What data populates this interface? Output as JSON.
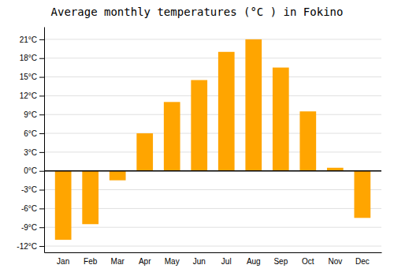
{
  "chart_data": {
    "type": "bar",
    "title": "Average monthly temperatures (°C ) in Fokino",
    "categories": [
      "Jan",
      "Feb",
      "Mar",
      "Apr",
      "May",
      "Jun",
      "Jul",
      "Aug",
      "Sep",
      "Oct",
      "Nov",
      "Dec"
    ],
    "values": [
      -11,
      -8.5,
      -1.5,
      6,
      11,
      14.5,
      19,
      21,
      16.5,
      9.5,
      0.5,
      -7.5
    ],
    "color": "#FFA500",
    "ylim": [
      -13,
      23
    ],
    "yticks": [
      {
        "value": -12,
        "label": "-12°C"
      },
      {
        "value": -9,
        "label": "-9°C"
      },
      {
        "value": -6,
        "label": "-6°C"
      },
      {
        "value": -3,
        "label": "-3°C"
      },
      {
        "value": 0,
        "label": "0°C"
      },
      {
        "value": 3,
        "label": "3°C"
      },
      {
        "value": 6,
        "label": "6°C"
      },
      {
        "value": 9,
        "label": "9°C"
      },
      {
        "value": 12,
        "label": "12°C"
      },
      {
        "value": 15,
        "label": "15°C"
      },
      {
        "value": 18,
        "label": "18°C"
      },
      {
        "value": 21,
        "label": "21°C"
      }
    ],
    "grid": true
  }
}
